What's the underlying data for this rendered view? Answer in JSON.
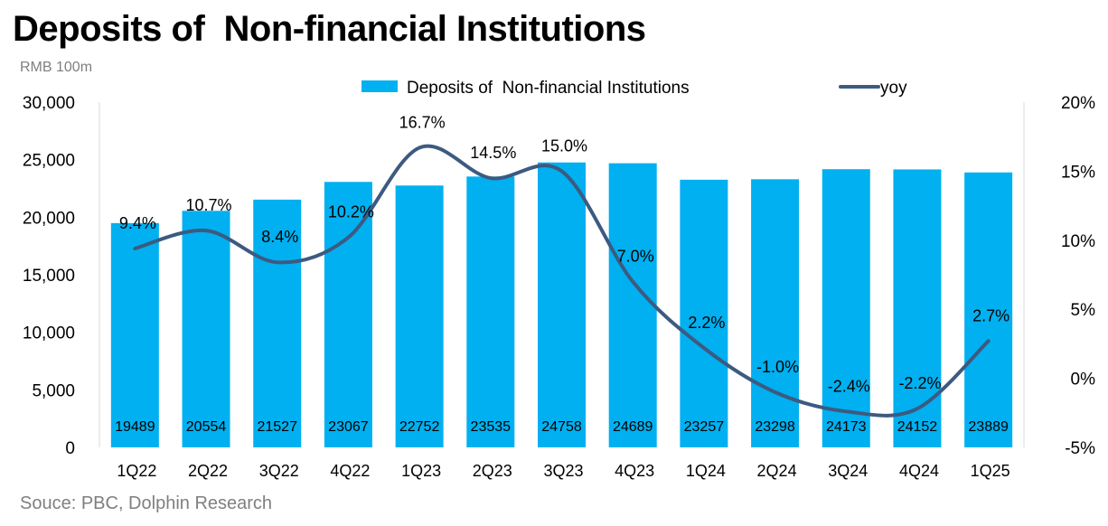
{
  "title": "Deposits of  Non-financial Institutions",
  "unit_label": "RMB 100m",
  "source": "Souce: PBC, Dolphin Research",
  "colors": {
    "bar": "#00b0f0",
    "line": "#3d5a80",
    "grid": "#d9d9d9",
    "text": "#000000"
  },
  "chart_data": {
    "type": "bar+line",
    "categories": [
      "1Q22",
      "2Q22",
      "3Q22",
      "4Q22",
      "1Q23",
      "2Q23",
      "3Q23",
      "4Q23",
      "1Q24",
      "2Q24",
      "3Q24",
      "4Q24",
      "1Q25"
    ],
    "series": [
      {
        "name": "Deposits of  Non-financial Institutions",
        "type": "bar",
        "axis": "left",
        "values": [
          19489,
          20554,
          21527,
          23067,
          22752,
          23535,
          24758,
          24689,
          23257,
          23298,
          24173,
          24152,
          23889
        ],
        "labels": [
          "19489",
          "20554",
          "21527",
          "23067",
          "22752",
          "23535",
          "24758",
          "24689",
          "23257",
          "23298",
          "24173",
          "24152",
          "23889"
        ]
      },
      {
        "name": "yoy",
        "type": "line",
        "axis": "right",
        "values": [
          9.4,
          10.7,
          8.4,
          10.2,
          16.7,
          14.5,
          15.0,
          7.0,
          2.2,
          -1.0,
          -2.4,
          -2.2,
          2.7
        ],
        "labels": [
          "9.4%",
          "10.7%",
          "8.4%",
          "10.2%",
          "16.7%",
          "14.5%",
          "15.0%",
          "7.0%",
          "2.2%",
          "-1.0%",
          "-2.4%",
          "-2.2%",
          "2.7%"
        ]
      }
    ],
    "y_left": {
      "min": 0,
      "max": 30000,
      "ticks": [
        "0",
        "5,000",
        "10,000",
        "15,000",
        "20,000",
        "25,000",
        "30,000"
      ]
    },
    "y_right": {
      "min": -5,
      "max": 20,
      "ticks": [
        "-5%",
        "0%",
        "5%",
        "10%",
        "15%",
        "20%"
      ]
    },
    "grid": false,
    "legend": "top"
  }
}
